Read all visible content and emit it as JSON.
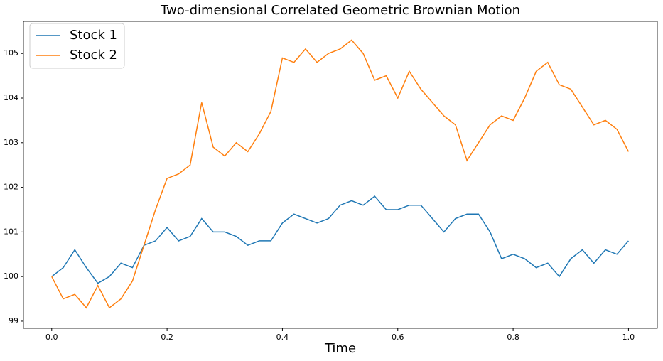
{
  "chart_data": {
    "type": "line",
    "title": "Two-dimensional Correlated Geometric Brownian Motion",
    "x_label": "Time",
    "x": [
      0,
      0.02,
      0.04,
      0.06,
      0.08,
      0.1,
      0.12,
      0.14,
      0.16,
      0.18,
      0.2,
      0.22,
      0.24,
      0.26,
      0.28,
      0.3,
      0.32,
      0.34,
      0.36,
      0.38,
      0.4,
      0.42,
      0.44,
      0.46,
      0.48,
      0.5,
      0.52,
      0.54,
      0.56,
      0.58,
      0.6,
      0.62,
      0.64,
      0.66,
      0.68,
      0.7,
      0.72,
      0.74,
      0.76,
      0.78,
      0.8,
      0.82,
      0.84,
      0.86,
      0.88,
      0.9,
      0.92,
      0.94,
      0.96,
      0.98,
      1
    ],
    "series": [
      {
        "name": "Stock 1",
        "color": "#1f77b4",
        "values": [
          100.0,
          100.2,
          100.6,
          100.2,
          99.85,
          100.0,
          100.3,
          100.2,
          100.7,
          100.8,
          101.1,
          100.8,
          100.9,
          101.3,
          101.0,
          101.0,
          100.9,
          100.7,
          100.8,
          100.8,
          101.2,
          101.4,
          101.3,
          101.2,
          101.3,
          101.6,
          101.7,
          101.6,
          101.8,
          101.5,
          101.5,
          101.6,
          101.6,
          101.3,
          101.0,
          101.3,
          101.4,
          101.4,
          101.0,
          100.4,
          100.5,
          100.4,
          100.2,
          100.3,
          100.0,
          100.4,
          100.6,
          100.3,
          100.6,
          100.5,
          100.8
        ]
      },
      {
        "name": "Stock 2",
        "color": "#ff7f0e",
        "values": [
          100.0,
          99.5,
          99.6,
          99.3,
          99.8,
          99.3,
          99.5,
          99.9,
          100.7,
          101.5,
          102.2,
          102.3,
          102.5,
          103.9,
          102.9,
          102.7,
          103.0,
          102.8,
          103.2,
          103.7,
          104.9,
          104.8,
          105.1,
          104.8,
          105.0,
          105.1,
          105.3,
          105.0,
          104.4,
          104.5,
          104.0,
          104.6,
          104.2,
          103.9,
          103.6,
          103.4,
          102.6,
          103.0,
          103.4,
          103.6,
          103.5,
          104.0,
          104.6,
          104.8,
          104.3,
          104.2,
          103.8,
          103.4,
          103.5,
          103.3,
          102.8
        ]
      }
    ],
    "xlim": [
      -0.049,
      1.05
    ],
    "ylim": [
      98.84,
      105.72
    ],
    "xticks": [
      {
        "value": 0,
        "label": "0.0"
      },
      0.2,
      0.4,
      0.6,
      0.8,
      {
        "value": 1,
        "label": "1.0"
      }
    ],
    "yticks": [
      99,
      100,
      101,
      102,
      103,
      104,
      105
    ],
    "legend": "upper left"
  }
}
